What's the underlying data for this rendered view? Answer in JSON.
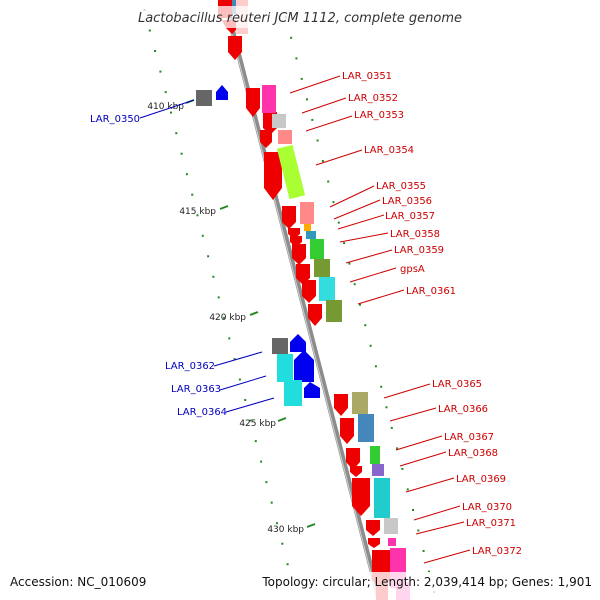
{
  "title": "Lactobacillus reuteri JCM 1112, complete genome",
  "footer": {
    "accession": "Accession: NC_010609",
    "summary": "Topology: circular; Length: 2,039,414 bp; Genes: 1,901"
  },
  "colors": {
    "backbone": "#8c8c8c",
    "cds_forward": "#ee0000",
    "cds_reverse": "#0000ee",
    "tick": "#228822",
    "label_forward": "#cc0000",
    "label_reverse": "#0000bb"
  },
  "scale": {
    "unit": "kbp",
    "ticks": [
      {
        "label": "410 kbp",
        "value": 410
      },
      {
        "label": "415 kbp",
        "value": 415
      },
      {
        "label": "420 kbp",
        "value": 420
      },
      {
        "label": "425 kbp",
        "value": 425
      },
      {
        "label": "430 kbp",
        "value": 430
      }
    ]
  },
  "genes_forward": [
    {
      "name": "LAR_0351",
      "cog_color": "#ff33aa"
    },
    {
      "name": "LAR_0352",
      "cog_color": "#c8c8c8"
    },
    {
      "name": "LAR_0353",
      "cog_color": "#ff8888"
    },
    {
      "name": "LAR_0354",
      "cog_color": "#aaff33"
    },
    {
      "name": "LAR_0355",
      "cog_color": "#ff8888"
    },
    {
      "name": "LAR_0356",
      "cog_color": "#ffaa00"
    },
    {
      "name": "LAR_0357",
      "cog_color": "#3399bb"
    },
    {
      "name": "LAR_0358",
      "cog_color": "#33cc33"
    },
    {
      "name": "LAR_0359",
      "cog_color": "#779933"
    },
    {
      "name": "gpsA",
      "cog_color": "#33dddd"
    },
    {
      "name": "LAR_0361",
      "cog_color": "#779933"
    },
    {
      "name": "LAR_0365",
      "cog_color": "#aaaa66"
    },
    {
      "name": "LAR_0366",
      "cog_color": "#4488bb"
    },
    {
      "name": "LAR_0367",
      "cog_color": "#33cc33"
    },
    {
      "name": "LAR_0368",
      "cog_color": "#8866cc"
    },
    {
      "name": "LAR_0369",
      "cog_color": "#22cccc"
    },
    {
      "name": "LAR_0370",
      "cog_color": "#c8c8c8"
    },
    {
      "name": "LAR_0371",
      "cog_color": "#ff33aa"
    },
    {
      "name": "LAR_0372",
      "cog_color": "#ff33aa"
    }
  ],
  "genes_reverse": [
    {
      "name": "LAR_0350",
      "cog_color": "#666666"
    },
    {
      "name": "LAR_0362",
      "cog_color": "#666666"
    },
    {
      "name": "LAR_0363",
      "cog_color": "#22dddd"
    },
    {
      "name": "LAR_0364",
      "cog_color": "#22dddd"
    }
  ]
}
